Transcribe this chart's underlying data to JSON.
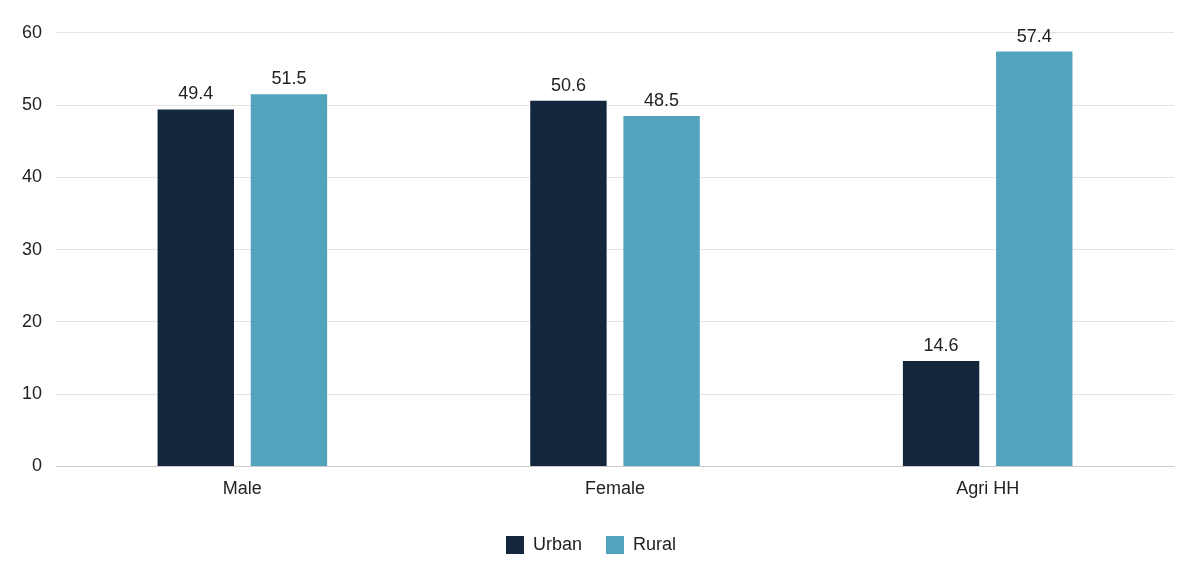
{
  "chart_data": {
    "type": "bar",
    "categories": [
      "Male",
      "Female",
      "Agri HH"
    ],
    "series": [
      {
        "name": "Urban",
        "color": "#13263b",
        "values": [
          49.4,
          50.6,
          14.6
        ]
      },
      {
        "name": "Rural",
        "color": "#53a3bd",
        "values": [
          51.5,
          48.5,
          57.4
        ]
      }
    ],
    "ylim": [
      0,
      60
    ],
    "yticks": [
      0,
      10,
      20,
      30,
      40,
      50,
      60
    ],
    "grid": "y",
    "legend": "bottom",
    "data_labels": true
  }
}
